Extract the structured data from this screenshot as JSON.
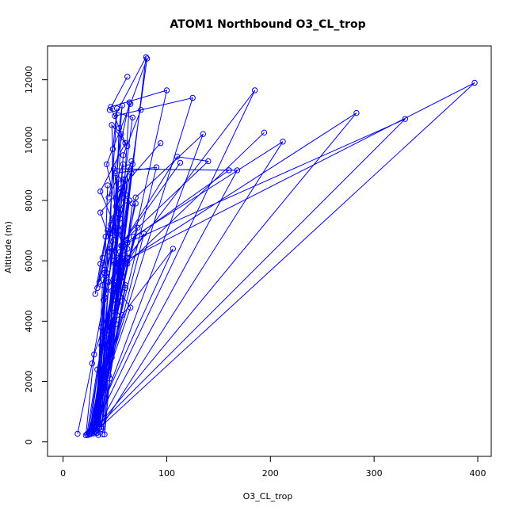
{
  "chart_data": {
    "type": "line",
    "title": "ATOM1 Northbound O3_CL_trop",
    "xlabel": "O3_CL_trop",
    "ylabel": "Altitude (m)",
    "xlim": [
      -15,
      413
    ],
    "ylim": [
      -480,
      13120
    ],
    "xticks": [
      0,
      100,
      200,
      300,
      400
    ],
    "yticks": [
      0,
      2000,
      4000,
      6000,
      8000,
      10000,
      12000
    ],
    "grid": false,
    "legend": "none",
    "line_color": "#0000ff",
    "marker": "open-circle",
    "series": [
      {
        "x": [
          14,
          28,
          40,
          58,
          36,
          60,
          46,
          100,
          27,
          44,
          60,
          36,
          94
        ],
        "y": [
          270,
          2600,
          4800,
          6500,
          8300,
          9900,
          11100,
          11650,
          300,
          2200,
          5200,
          7600,
          9900
        ]
      },
      {
        "x": [
          22,
          30,
          55,
          80,
          50,
          125,
          24,
          38,
          60,
          42,
          65,
          81,
          31,
          48,
          72
        ],
        "y": [
          220,
          2900,
          5600,
          12750,
          10800,
          11400,
          230,
          3300,
          6200,
          9200,
          11200,
          12700,
          350,
          3900,
          7100
        ]
      },
      {
        "x": [
          25,
          42,
          62,
          185,
          32,
          52,
          68,
          212,
          37,
          60,
          50,
          90,
          29,
          46,
          58,
          75
        ],
        "y": [
          270,
          3200,
          6100,
          11650,
          600,
          4200,
          6800,
          9950,
          500,
          5100,
          8900,
          9100,
          420,
          3800,
          9500,
          11000
        ]
      },
      {
        "x": [
          27,
          40,
          52,
          283,
          33,
          50,
          62,
          330,
          30,
          48,
          60,
          397,
          35,
          55,
          62,
          194
        ],
        "y": [
          300,
          3500,
          5800,
          10900,
          500,
          4300,
          6600,
          10700,
          400,
          3900,
          6000,
          11900,
          460,
          4800,
          5900,
          10250
        ]
      },
      {
        "x": [
          26,
          45,
          57,
          160,
          49,
          168,
          31,
          43,
          60,
          70,
          135,
          28,
          40,
          56,
          110,
          140,
          60,
          113
        ],
        "y": [
          250,
          3800,
          6500,
          9000,
          9050,
          9000,
          320,
          3200,
          6000,
          8100,
          10200,
          280,
          3600,
          6500,
          9450,
          9300,
          6700,
          9250
        ]
      },
      {
        "x": [
          34,
          40,
          57,
          106,
          26,
          37,
          50,
          65,
          23,
          33,
          47,
          78,
          32,
          41,
          49,
          67,
          45,
          62
        ],
        "y": [
          230,
          2000,
          4200,
          6400,
          350,
          3200,
          5200,
          4450,
          260,
          2400,
          5000,
          6900,
          720,
          3100,
          6000,
          10750,
          11000,
          12100
        ]
      },
      {
        "x": [
          38,
          45,
          53,
          47,
          62,
          56,
          40,
          47,
          54,
          64,
          44,
          58,
          33,
          41,
          52,
          67,
          35,
          42,
          55,
          58,
          37,
          55,
          62,
          70
        ],
        "y": [
          250,
          2100,
          4600,
          10500,
          9800,
          10200,
          250,
          2800,
          5600,
          11250,
          8100,
          9200,
          300,
          4900,
          6900,
          9200,
          500,
          3700,
          7400,
          8700,
          430,
          5500,
          6600,
          7900
        ]
      },
      {
        "x": [
          30,
          39,
          45,
          48,
          52,
          32,
          40,
          43,
          35,
          44,
          50,
          54,
          57,
          34,
          42,
          49,
          53,
          32,
          38,
          46,
          52,
          31,
          37,
          41
        ],
        "y": [
          280,
          4700,
          6300,
          9700,
          11050,
          400,
          5700,
          8500,
          600,
          5300,
          7000,
          10400,
          11150,
          600,
          5600,
          6700,
          8700,
          650,
          5200,
          6400,
          6100,
          550,
          3800,
          5500
        ]
      },
      {
        "x": [
          40,
          45,
          50,
          55,
          60,
          63,
          44,
          48,
          56,
          64,
          47,
          52,
          58,
          66,
          49,
          54,
          62,
          67,
          51,
          55,
          60,
          66
        ],
        "y": [
          2000,
          4100,
          5900,
          6300,
          8200,
          9100,
          2500,
          4700,
          5800,
          8000,
          3500,
          5300,
          7100,
          8900,
          4000,
          5700,
          6400,
          7900,
          3900,
          5400,
          8700,
          9300
        ]
      },
      {
        "x": [
          31,
          36,
          41,
          46,
          51,
          56,
          33,
          38,
          43,
          48,
          53,
          58,
          35,
          40,
          45,
          50,
          55,
          60
        ],
        "y": [
          4900,
          5900,
          6800,
          7200,
          7800,
          8400,
          5100,
          6100,
          7000,
          7400,
          7600,
          8600,
          5300,
          5600,
          6900,
          7100,
          7700,
          8000
        ]
      }
    ]
  }
}
